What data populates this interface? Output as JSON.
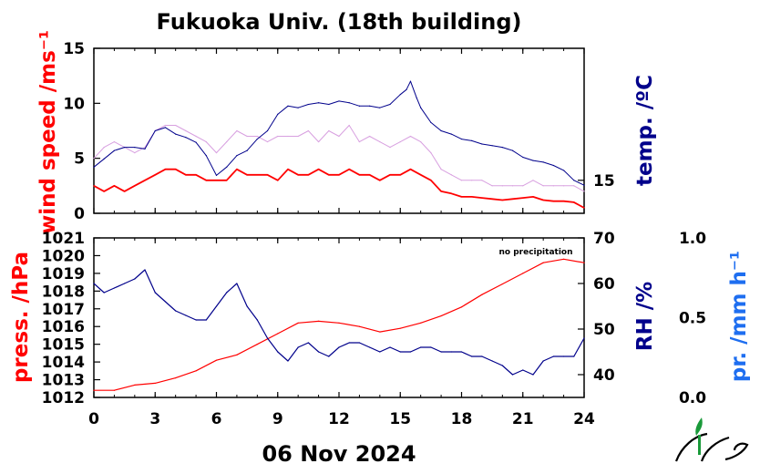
{
  "title": "Fukuoka Univ. (18th building)",
  "date_label": "06 Nov 2024",
  "note": "no precipitation",
  "colors": {
    "red": "#ff0000",
    "navy": "#00008b",
    "blue": "#1e6ef0",
    "pink": "#d8a0e0",
    "logo": "#1a9a3a"
  },
  "chart_data": [
    {
      "type": "line",
      "panel": "top",
      "x_ticks": [
        "0",
        "3",
        "6",
        "9",
        "12",
        "15",
        "18",
        "21",
        "24"
      ],
      "xlim": [
        0,
        24
      ],
      "left_axis": {
        "label": "wind speed /ms⁻¹",
        "ticks": [
          "0",
          "5",
          "10",
          "15"
        ],
        "ylim": [
          0,
          15
        ]
      },
      "right_axis": {
        "label": "temp. /ºC",
        "ticks": [
          "15"
        ],
        "ylim": [
          13,
          23
        ]
      },
      "series": [
        {
          "role": "wind_gust",
          "color": "pink",
          "axis": "left",
          "x": [
            0,
            0.5,
            1,
            1.5,
            2,
            2.5,
            3,
            3.5,
            4,
            4.5,
            5,
            5.5,
            6,
            6.5,
            7,
            7.5,
            8,
            8.5,
            9,
            9.5,
            10,
            10.5,
            11,
            11.5,
            12,
            12.5,
            13,
            13.5,
            14,
            14.5,
            15,
            15.5,
            16,
            16.5,
            17,
            17.5,
            18,
            18.5,
            19,
            19.5,
            20,
            20.5,
            21,
            21.5,
            22,
            22.5,
            23,
            23.5,
            24
          ],
          "y": [
            5,
            6,
            6.5,
            6,
            5.5,
            6,
            7.5,
            8,
            8,
            7.5,
            7,
            6.5,
            5.5,
            6.5,
            7.5,
            7,
            7,
            6.5,
            7,
            7,
            7,
            7.5,
            6.5,
            7.5,
            7,
            8,
            6.5,
            7,
            6.5,
            6,
            6.5,
            7,
            6.5,
            5.5,
            4,
            3.5,
            3,
            3,
            3,
            2.5,
            2.5,
            2.5,
            2.5,
            3,
            2.5,
            2.5,
            2.5,
            2.5,
            2
          ]
        },
        {
          "role": "wind_mean",
          "color": "red",
          "axis": "left",
          "x": [
            0,
            0.5,
            1,
            1.5,
            2,
            2.5,
            3,
            3.5,
            4,
            4.5,
            5,
            5.5,
            6,
            6.5,
            7,
            7.5,
            8,
            8.5,
            9,
            9.5,
            10,
            10.5,
            11,
            11.5,
            12,
            12.5,
            13,
            13.5,
            14,
            14.5,
            15,
            15.5,
            16,
            16.5,
            17,
            17.5,
            18,
            18.5,
            19,
            19.5,
            20,
            20.5,
            21,
            21.5,
            22,
            22.5,
            23,
            23.5,
            24
          ],
          "y": [
            2.5,
            2,
            2.5,
            2,
            2.5,
            3,
            3.5,
            4,
            4,
            3.5,
            3.5,
            3,
            3,
            3,
            4,
            3.5,
            3.5,
            3.5,
            3,
            4,
            3.5,
            3.5,
            4,
            3.5,
            3.5,
            4,
            3.5,
            3.5,
            3,
            3.5,
            3.5,
            4,
            3.5,
            3,
            2,
            1.8,
            1.5,
            1.5,
            1.4,
            1.3,
            1.2,
            1.3,
            1.4,
            1.5,
            1.2,
            1.1,
            1.1,
            1,
            0.5
          ]
        },
        {
          "role": "temperature",
          "color": "navy",
          "axis": "right",
          "x": [
            0,
            0.5,
            1,
            1.5,
            2,
            2.5,
            3,
            3.5,
            4,
            4.5,
            5,
            5.5,
            6,
            6.5,
            7,
            7.5,
            8,
            8.5,
            9,
            9.5,
            10,
            10.5,
            11,
            11.5,
            12,
            12.5,
            13,
            13.5,
            14,
            14.5,
            15,
            15.3,
            15.5,
            15.8,
            16,
            16.5,
            17,
            17.5,
            18,
            18.5,
            19,
            19.5,
            20,
            20.5,
            21,
            21.5,
            22,
            22.5,
            23,
            23.5,
            24
          ],
          "y": [
            15.8,
            16.3,
            16.8,
            17,
            17,
            16.9,
            18,
            18.2,
            17.8,
            17.6,
            17.3,
            16.5,
            15.3,
            15.8,
            16.5,
            16.8,
            17.5,
            18,
            19,
            19.5,
            19.4,
            19.6,
            19.7,
            19.6,
            19.8,
            19.7,
            19.5,
            19.5,
            19.4,
            19.6,
            20.2,
            20.5,
            21,
            20,
            19.4,
            18.5,
            18,
            17.8,
            17.5,
            17.4,
            17.2,
            17.1,
            17,
            16.8,
            16.4,
            16.2,
            16.1,
            15.9,
            15.6,
            15,
            14.7
          ]
        }
      ]
    },
    {
      "type": "line",
      "panel": "bottom",
      "x_label": "06 Nov 2024",
      "x_ticks": [
        "0",
        "3",
        "6",
        "9",
        "12",
        "15",
        "18",
        "21",
        "24"
      ],
      "xlim": [
        0,
        24
      ],
      "left_axis": {
        "label": "press. /hPa",
        "ticks": [
          "1012",
          "1013",
          "1014",
          "1015",
          "1016",
          "1017",
          "1018",
          "1019",
          "1020",
          "1021"
        ],
        "ylim": [
          1012,
          1021
        ]
      },
      "right_axis": {
        "label": "RH /%",
        "ticks": [
          "40",
          "50",
          "60",
          "70"
        ],
        "ylim": [
          35,
          70
        ]
      },
      "far_right_axis": {
        "label": "pr. /mm h⁻¹",
        "ticks": [
          "0.0",
          "0.5",
          "1.0"
        ],
        "ylim": [
          0,
          1
        ]
      },
      "series": [
        {
          "role": "pressure",
          "color": "red",
          "axis": "left",
          "x": [
            0,
            1,
            2,
            3,
            4,
            5,
            6,
            7,
            8,
            9,
            10,
            11,
            12,
            13,
            14,
            15,
            16,
            17,
            18,
            19,
            20,
            21,
            22,
            23,
            24
          ],
          "y": [
            1012.4,
            1012.4,
            1012.7,
            1012.8,
            1013.1,
            1013.5,
            1014.1,
            1014.4,
            1015.0,
            1015.6,
            1016.2,
            1016.3,
            1016.2,
            1016.0,
            1015.7,
            1015.9,
            1016.2,
            1016.6,
            1017.1,
            1017.8,
            1018.4,
            1019.0,
            1019.6,
            1019.8,
            1019.6
          ]
        },
        {
          "role": "humidity",
          "color": "navy",
          "axis": "right",
          "x": [
            0,
            0.5,
            1,
            1.5,
            2,
            2.5,
            3,
            3.5,
            4,
            4.5,
            5,
            5.5,
            6,
            6.5,
            7,
            7.5,
            8,
            8.5,
            9,
            9.5,
            10,
            10.5,
            11,
            11.5,
            12,
            12.5,
            13,
            13.5,
            14,
            14.5,
            15,
            15.5,
            16,
            16.5,
            17,
            17.5,
            18,
            18.5,
            19,
            19.5,
            20,
            20.5,
            21,
            21.5,
            22,
            22.5,
            23,
            23.5,
            24
          ],
          "y": [
            60,
            58,
            59,
            60,
            61,
            63,
            58,
            56,
            54,
            53,
            52,
            52,
            55,
            58,
            60,
            55,
            52,
            48,
            45,
            43,
            46,
            47,
            45,
            44,
            46,
            47,
            47,
            46,
            45,
            46,
            45,
            45,
            46,
            46,
            45,
            45,
            45,
            44,
            44,
            43,
            42,
            40,
            41,
            40,
            43,
            44,
            44,
            44,
            48
          ]
        }
      ]
    }
  ]
}
